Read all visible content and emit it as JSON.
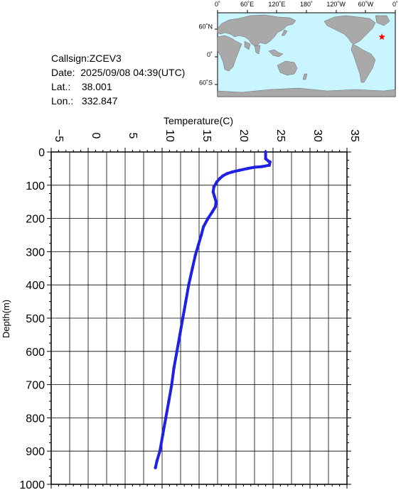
{
  "station": {
    "callsign_label": "Callsign:",
    "callsign": "ZCEV3",
    "date_label": "Date:",
    "date": "2025/09/08 04:39(UTC)",
    "lat_label": "Lat.:",
    "lat": "38.001",
    "lon_label": "Lon.:",
    "lon": "332.847"
  },
  "map": {
    "lon_labels": [
      "0˚",
      "60˚E",
      "120˚E",
      "180˚",
      "120˚W",
      "60˚W",
      "0˚"
    ],
    "lat_labels": [
      "60˚N",
      "0˚",
      "60˚S"
    ],
    "ocean_color": "#c8f5ff",
    "land_color": "#a9a9a9",
    "marker": {
      "lon": 332.847,
      "lat": 38.001,
      "color": "#ff0000",
      "icon": "star-icon"
    }
  },
  "chart_data": {
    "type": "line",
    "xlabel": "Temperature(C)",
    "ylabel": "Depth(m)",
    "xlim": [
      -5,
      35
    ],
    "ylim": [
      1000,
      0
    ],
    "x_ticks": [
      "-5",
      "0",
      "5",
      "10",
      "15",
      "20",
      "25",
      "30",
      "35"
    ],
    "y_ticks": [
      "0",
      "100",
      "200",
      "300",
      "400",
      "500",
      "600",
      "700",
      "800",
      "900",
      "1000"
    ],
    "grid": true,
    "line_color": "#1f1fe6",
    "series": [
      {
        "points": [
          [
            24.0,
            0
          ],
          [
            24.0,
            20
          ],
          [
            24.4,
            28
          ],
          [
            24.6,
            30
          ],
          [
            24.5,
            40
          ],
          [
            23.5,
            44
          ],
          [
            22.5,
            46
          ],
          [
            21.5,
            50
          ],
          [
            20.5,
            55
          ],
          [
            19.5,
            60
          ],
          [
            18.8,
            65
          ],
          [
            18.2,
            72
          ],
          [
            17.8,
            80
          ],
          [
            17.4,
            90
          ],
          [
            17.0,
            105
          ],
          [
            16.9,
            120
          ],
          [
            17.1,
            135
          ],
          [
            17.3,
            150
          ],
          [
            17.2,
            165
          ],
          [
            16.8,
            180
          ],
          [
            16.2,
            200
          ],
          [
            15.6,
            225
          ],
          [
            15.3,
            250
          ],
          [
            14.9,
            280
          ],
          [
            14.5,
            310
          ],
          [
            14.1,
            350
          ],
          [
            13.6,
            400
          ],
          [
            13.2,
            450
          ],
          [
            12.8,
            500
          ],
          [
            12.4,
            550
          ],
          [
            12.0,
            600
          ],
          [
            11.6,
            650
          ],
          [
            11.3,
            700
          ],
          [
            10.9,
            750
          ],
          [
            10.5,
            800
          ],
          [
            10.1,
            850
          ],
          [
            9.7,
            900
          ],
          [
            9.3,
            930
          ],
          [
            9.1,
            950
          ]
        ]
      }
    ]
  }
}
